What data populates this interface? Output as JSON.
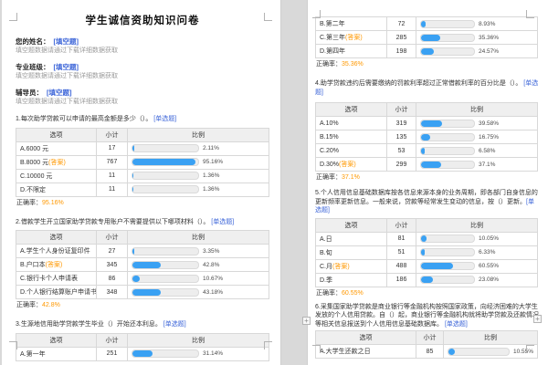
{
  "strings": {
    "h_option": "选项",
    "h_count": "小计",
    "h_ratio": "比例",
    "correct_label": "正确率：",
    "answer_suffix": "(答案)",
    "blank_tag": "[填空题]",
    "single_tag": "[单选题]",
    "blank_note": "填空题数据请通过下载详细数据获取",
    "plus_icon": "+"
  },
  "colors": {
    "bar_fill": "#3aa1f3",
    "answer_orange": "#ff9800",
    "tag_blue": "#3b64d8",
    "header_bg": "#efefef"
  },
  "title": "学生诚信资助知识问卷",
  "fields": [
    {
      "label": "您的姓名："
    },
    {
      "label": "专业班级："
    },
    {
      "label": "辅导员："
    }
  ],
  "q": {
    "q1": {
      "text": "1.每次助学贷款可以申请的最高金额是多少（）。",
      "rows": [
        {
          "option": "A.6000 元",
          "count": "17",
          "pct": "2.11%",
          "pct_num": 2.11,
          "answer": false
        },
        {
          "option": "B.8000 元",
          "count": "767",
          "pct": "95.16%",
          "pct_num": 95.16,
          "answer": true
        },
        {
          "option": "C.10000 元",
          "count": "11",
          "pct": "1.36%",
          "pct_num": 1.36,
          "answer": false
        },
        {
          "option": "D.不限定",
          "count": "11",
          "pct": "1.36%",
          "pct_num": 1.36,
          "answer": false
        }
      ],
      "correct": "95.16%"
    },
    "q2": {
      "text": "2.借款学生开立国家助学贷款专用账户不需要提供以下哪项材料（）。",
      "rows": [
        {
          "option": "A.学生个人身份证复印件",
          "count": "27",
          "pct": "3.35%",
          "pct_num": 3.35,
          "answer": false
        },
        {
          "option": "B.户口本",
          "count": "345",
          "pct": "42.8%",
          "pct_num": 42.8,
          "answer": true
        },
        {
          "option": "C.银行卡个人申请表",
          "count": "86",
          "pct": "10.67%",
          "pct_num": 10.67,
          "answer": false
        },
        {
          "option": "D.个人银行结算账户申请书",
          "count": "348",
          "pct": "43.18%",
          "pct_num": 43.18,
          "answer": false
        }
      ],
      "correct": "42.8%"
    },
    "q3": {
      "text": "3.生源地信用助学贷款学生毕业（）开始还本利息。",
      "rows": [
        {
          "option": "A.第一年",
          "count": "251",
          "pct": "31.14%",
          "pct_num": 31.14,
          "answer": false
        },
        {
          "option": "B.第二年",
          "count": "72",
          "pct": "8.93%",
          "pct_num": 8.93,
          "answer": false
        },
        {
          "option": "C.第三年",
          "count": "285",
          "pct": "35.36%",
          "pct_num": 35.36,
          "answer": true
        },
        {
          "option": "D.第四年",
          "count": "198",
          "pct": "24.57%",
          "pct_num": 24.57,
          "answer": false
        }
      ],
      "correct": "35.36%"
    },
    "q4": {
      "text": "4.助学贷款违约后需要缴纳的罚款利率超过正常借款利率的百分比是（）。",
      "rows": [
        {
          "option": "A.10%",
          "count": "319",
          "pct": "39.58%",
          "pct_num": 39.58,
          "answer": false
        },
        {
          "option": "B.15%",
          "count": "135",
          "pct": "16.75%",
          "pct_num": 16.75,
          "answer": false
        },
        {
          "option": "C.20%",
          "count": "53",
          "pct": "6.58%",
          "pct_num": 6.58,
          "answer": false
        },
        {
          "option": "D.30%",
          "count": "299",
          "pct": "37.1%",
          "pct_num": 37.1,
          "answer": true
        }
      ],
      "correct": "37.1%"
    },
    "q5": {
      "text": "5.个人信用信息基础数据库按各信息来源本身的业务周期，即各部门自身信息的更新频率更新信息。一般来说，贷款等经常发生变动的信息，按（）更新。",
      "rows": [
        {
          "option": "A.日",
          "count": "81",
          "pct": "10.05%",
          "pct_num": 10.05,
          "answer": false
        },
        {
          "option": "B.旬",
          "count": "51",
          "pct": "6.33%",
          "pct_num": 6.33,
          "answer": false
        },
        {
          "option": "C.月",
          "count": "488",
          "pct": "60.55%",
          "pct_num": 60.55,
          "answer": true
        },
        {
          "option": "D.季",
          "count": "186",
          "pct": "23.08%",
          "pct_num": 23.08,
          "answer": false
        }
      ],
      "correct": "60.55%"
    },
    "q6": {
      "text": "6.采集国家助学贷款是商业银行等金融机构按照国家政策，向经济困难的大学生发放的个人信用贷款。自（）起，商业银行等金融机构就将助学贷款及还款情况等相关信息报送到个人信用信息基础数据库。",
      "rows": [
        {
          "option": "A.大学生还款之日",
          "count": "85",
          "pct": "10.55%",
          "pct_num": 10.55,
          "answer": false
        }
      ]
    }
  }
}
